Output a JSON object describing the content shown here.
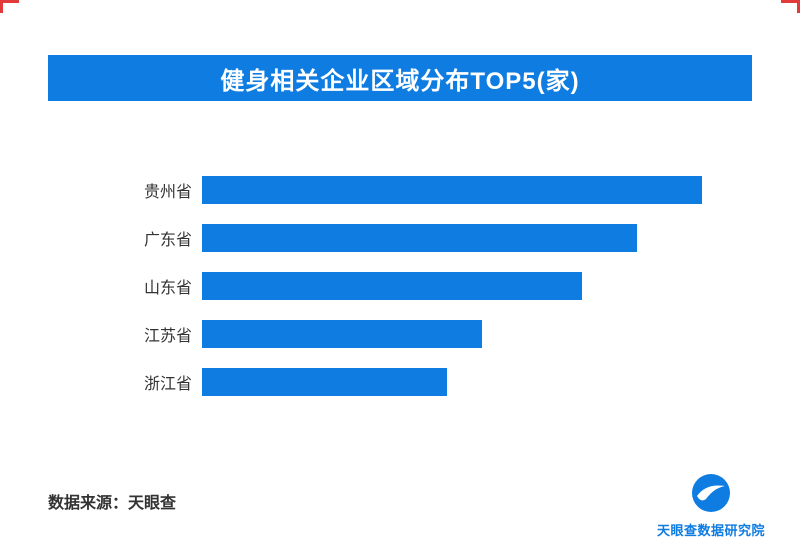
{
  "page": {
    "background": "#ffffff"
  },
  "header": {
    "title": "健身相关企业区域分布TOP5(家)",
    "bg_color": "#0e7ce1",
    "text_color": "#ffffff"
  },
  "chart_data": {
    "type": "bar",
    "orientation": "horizontal",
    "title": "健身相关企业区域分布TOP5(家)",
    "categories": [
      "贵州省",
      "广东省",
      "山东省",
      "江苏省",
      "浙江省"
    ],
    "values": [
      100,
      87,
      76,
      56,
      49
    ],
    "value_note": "no numeric labels shown in image; values are relative bar lengths as % of the longest bar",
    "bar_color": "#0e7ce1",
    "xlabel": "",
    "ylabel": "",
    "grid": false,
    "legend": false
  },
  "footer": {
    "source_label": "数据来源：天眼查"
  },
  "logo": {
    "text": "天眼查数据研究院",
    "color": "#0e7ce1"
  },
  "decorations": {
    "corner_mark_color": "#e03a3a"
  }
}
